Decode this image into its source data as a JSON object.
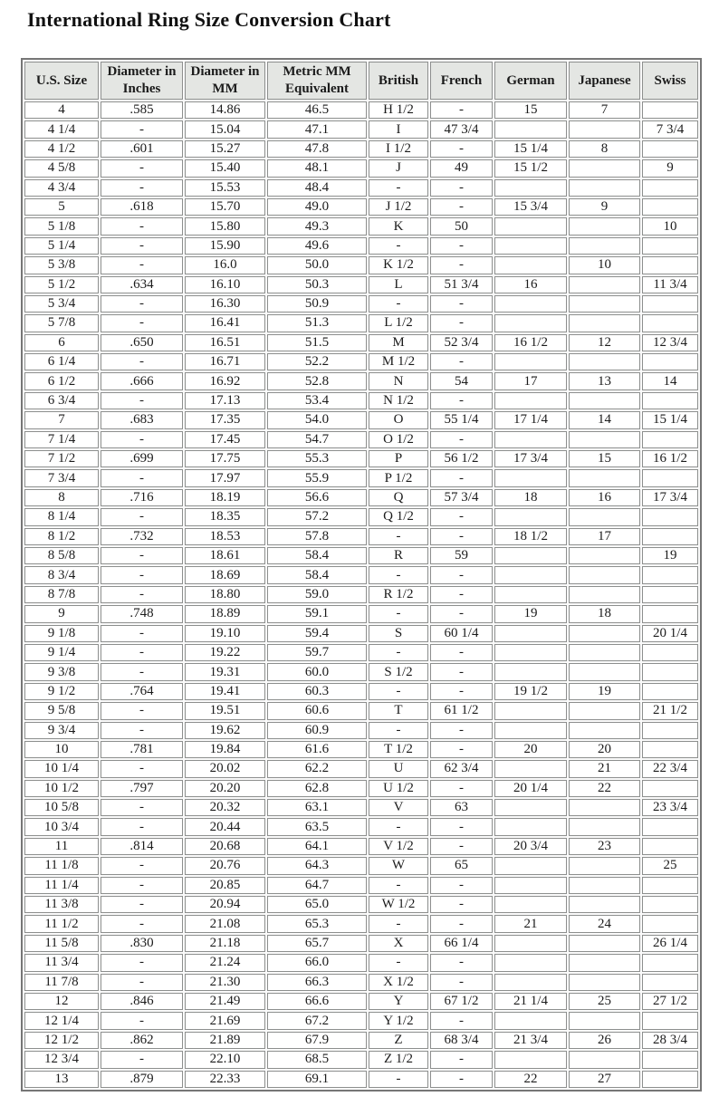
{
  "page": {
    "title": "International Ring Size Conversion Chart"
  },
  "table": {
    "columns": [
      "U.S. Size",
      "Diameter in Inches",
      "Diameter in MM",
      "Metric MM Equivalent",
      "British",
      "French",
      "German",
      "Japanese",
      "Swiss"
    ],
    "rows": [
      [
        "4",
        ".585",
        "14.86",
        "46.5",
        "H 1/2",
        "-",
        "15",
        "7",
        ""
      ],
      [
        "4 1/4",
        "-",
        "15.04",
        "47.1",
        "I",
        "47 3/4",
        "",
        "",
        "7 3/4"
      ],
      [
        "4 1/2",
        ".601",
        "15.27",
        "47.8",
        "I 1/2",
        "-",
        "15 1/4",
        "8",
        ""
      ],
      [
        "4 5/8",
        "-",
        "15.40",
        "48.1",
        "J",
        "49",
        "15 1/2",
        "",
        "9"
      ],
      [
        "4 3/4",
        "-",
        "15.53",
        "48.4",
        "-",
        "-",
        "",
        "",
        ""
      ],
      [
        "5",
        ".618",
        "15.70",
        "49.0",
        "J 1/2",
        "-",
        "15 3/4",
        "9",
        ""
      ],
      [
        "5 1/8",
        "-",
        "15.80",
        "49.3",
        "K",
        "50",
        "",
        "",
        "10"
      ],
      [
        "5 1/4",
        "-",
        "15.90",
        "49.6",
        "-",
        "-",
        "",
        "",
        ""
      ],
      [
        "5 3/8",
        "-",
        "16.0",
        "50.0",
        "K 1/2",
        "-",
        "",
        "10",
        ""
      ],
      [
        "5 1/2",
        ".634",
        "16.10",
        "50.3",
        "L",
        "51 3/4",
        "16",
        "",
        "11 3/4"
      ],
      [
        "5 3/4",
        "-",
        "16.30",
        "50.9",
        "-",
        "-",
        "",
        "",
        ""
      ],
      [
        "5 7/8",
        "-",
        "16.41",
        "51.3",
        "L 1/2",
        "-",
        "",
        "",
        ""
      ],
      [
        "6",
        ".650",
        "16.51",
        "51.5",
        "M",
        "52 3/4",
        "16 1/2",
        "12",
        "12 3/4"
      ],
      [
        "6 1/4",
        "-",
        "16.71",
        "52.2",
        "M 1/2",
        "-",
        "",
        "",
        ""
      ],
      [
        "6 1/2",
        ".666",
        "16.92",
        "52.8",
        "N",
        "54",
        "17",
        "13",
        "14"
      ],
      [
        "6 3/4",
        "-",
        "17.13",
        "53.4",
        "N 1/2",
        "-",
        "",
        "",
        ""
      ],
      [
        "7",
        ".683",
        "17.35",
        "54.0",
        "O",
        "55 1/4",
        "17 1/4",
        "14",
        "15 1/4"
      ],
      [
        "7 1/4",
        "-",
        "17.45",
        "54.7",
        "O 1/2",
        "-",
        "",
        "",
        ""
      ],
      [
        "7 1/2",
        ".699",
        "17.75",
        "55.3",
        "P",
        "56 1/2",
        "17 3/4",
        "15",
        "16 1/2"
      ],
      [
        "7 3/4",
        "-",
        "17.97",
        "55.9",
        "P 1/2",
        "-",
        "",
        "",
        ""
      ],
      [
        "8",
        ".716",
        "18.19",
        "56.6",
        "Q",
        "57 3/4",
        "18",
        "16",
        "17 3/4"
      ],
      [
        "8 1/4",
        "-",
        "18.35",
        "57.2",
        "Q 1/2",
        "-",
        "",
        "",
        ""
      ],
      [
        "8 1/2",
        ".732",
        "18.53",
        "57.8",
        "-",
        "-",
        "18 1/2",
        "17",
        ""
      ],
      [
        "8 5/8",
        "-",
        "18.61",
        "58.4",
        "R",
        "59",
        "",
        "",
        "19"
      ],
      [
        "8 3/4",
        "-",
        "18.69",
        "58.4",
        "-",
        "-",
        "",
        "",
        ""
      ],
      [
        "8 7/8",
        "-",
        "18.80",
        "59.0",
        "R 1/2",
        "-",
        "",
        "",
        ""
      ],
      [
        "9",
        ".748",
        "18.89",
        "59.1",
        "-",
        "-",
        "19",
        "18",
        ""
      ],
      [
        "9 1/8",
        "-",
        "19.10",
        "59.4",
        "S",
        "60 1/4",
        "",
        "",
        "20 1/4"
      ],
      [
        "9 1/4",
        "-",
        "19.22",
        "59.7",
        "-",
        "-",
        "",
        "",
        ""
      ],
      [
        "9 3/8",
        "-",
        "19.31",
        "60.0",
        "S 1/2",
        "-",
        "",
        "",
        ""
      ],
      [
        "9 1/2",
        ".764",
        "19.41",
        "60.3",
        "-",
        "-",
        "19 1/2",
        "19",
        ""
      ],
      [
        "9 5/8",
        "-",
        "19.51",
        "60.6",
        "T",
        "61 1/2",
        "",
        "",
        "21 1/2"
      ],
      [
        "9 3/4",
        "-",
        "19.62",
        "60.9",
        "-",
        "-",
        "",
        "",
        ""
      ],
      [
        "10",
        ".781",
        "19.84",
        "61.6",
        "T 1/2",
        "-",
        "20",
        "20",
        ""
      ],
      [
        "10 1/4",
        "-",
        "20.02",
        "62.2",
        "U",
        "62 3/4",
        "",
        "21",
        "22 3/4"
      ],
      [
        "10 1/2",
        ".797",
        "20.20",
        "62.8",
        "U 1/2",
        "-",
        "20 1/4",
        "22",
        ""
      ],
      [
        "10 5/8",
        "-",
        "20.32",
        "63.1",
        "V",
        "63",
        "",
        "",
        "23 3/4"
      ],
      [
        "10 3/4",
        "-",
        "20.44",
        "63.5",
        "-",
        "-",
        "",
        "",
        ""
      ],
      [
        "11",
        ".814",
        "20.68",
        "64.1",
        "V 1/2",
        "-",
        "20 3/4",
        "23",
        ""
      ],
      [
        "11 1/8",
        "-",
        "20.76",
        "64.3",
        "W",
        "65",
        "",
        "",
        "25"
      ],
      [
        "11 1/4",
        "-",
        "20.85",
        "64.7",
        "-",
        "-",
        "",
        "",
        ""
      ],
      [
        "11 3/8",
        "-",
        "20.94",
        "65.0",
        "W 1/2",
        "-",
        "",
        "",
        ""
      ],
      [
        "11 1/2",
        "-",
        "21.08",
        "65.3",
        "-",
        "-",
        "21",
        "24",
        ""
      ],
      [
        "11 5/8",
        ".830",
        "21.18",
        "65.7",
        "X",
        "66 1/4",
        "",
        "",
        "26 1/4"
      ],
      [
        "11 3/4",
        "-",
        "21.24",
        "66.0",
        "-",
        "-",
        "",
        "",
        ""
      ],
      [
        "11 7/8",
        "-",
        "21.30",
        "66.3",
        "X 1/2",
        "-",
        "",
        "",
        ""
      ],
      [
        "12",
        ".846",
        "21.49",
        "66.6",
        "Y",
        "67 1/2",
        "21 1/4",
        "25",
        "27 1/2"
      ],
      [
        "12 1/4",
        "-",
        "21.69",
        "67.2",
        "Y 1/2",
        "-",
        "",
        "",
        ""
      ],
      [
        "12 1/2",
        ".862",
        "21.89",
        "67.9",
        "Z",
        "68 3/4",
        "21 3/4",
        "26",
        "28 3/4"
      ],
      [
        "12 3/4",
        "-",
        "22.10",
        "68.5",
        "Z 1/2",
        "-",
        "",
        "",
        ""
      ],
      [
        "13",
        ".879",
        "22.33",
        "69.1",
        "-",
        "-",
        "22",
        "27",
        ""
      ]
    ]
  },
  "colors": {
    "header_background": "#e4e6e3",
    "cell_background": "#ffffff",
    "grid_line": "#8d8f8e",
    "outer_border": "#767676",
    "text": "#1b1b1b"
  }
}
